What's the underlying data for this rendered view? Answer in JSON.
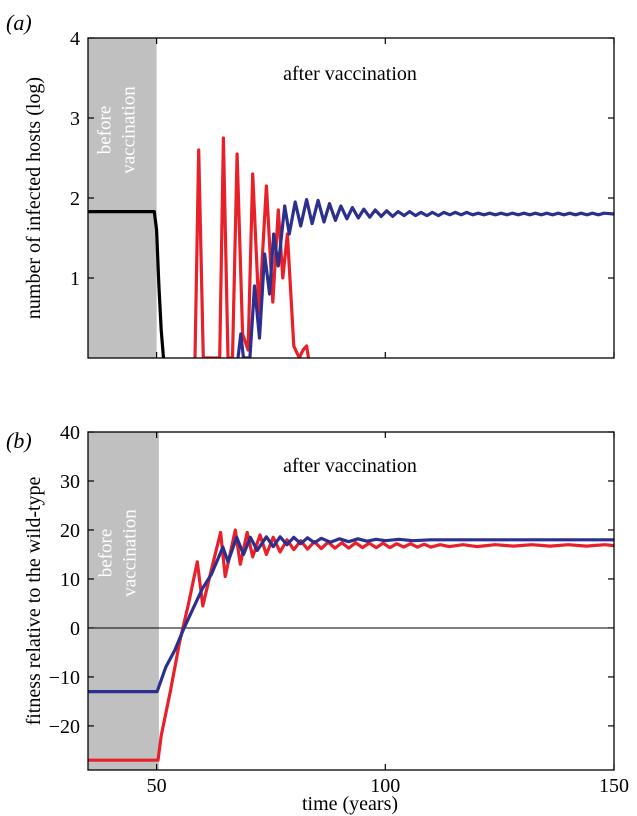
{
  "colors": {
    "black": "#000000",
    "red": "#e8202a",
    "blue": "#2b2f8e",
    "shade": "#c0c0c0"
  },
  "chart_data": [
    {
      "panel_label": "(a)",
      "type": "line",
      "title": "",
      "xlabel": "",
      "ylabel": "number of infected hosts (log)",
      "xlim": [
        35,
        150
      ],
      "ylim": [
        0,
        4
      ],
      "yticks": [
        1,
        2,
        3,
        4
      ],
      "xticks": [
        50,
        100,
        150
      ],
      "show_xtick_labels": false,
      "grid": false,
      "shaded_region": {
        "x": [
          35,
          50
        ],
        "label_line1": "before",
        "label_line2": "vaccination"
      },
      "annotation": "after vaccination",
      "series": [
        {
          "color": "black",
          "points": [
            [
              35,
              1.83
            ],
            [
              49.5,
              1.83
            ],
            [
              50.0,
              1.6
            ],
            [
              50.5,
              0.9
            ],
            [
              51.0,
              0.35
            ],
            [
              51.5,
              0
            ]
          ]
        },
        {
          "color": "red",
          "points": [
            [
              58.4,
              0
            ],
            [
              59.2,
              2.6
            ],
            [
              60.2,
              0
            ],
            [
              61.5,
              0
            ],
            [
              63.8,
              0
            ],
            [
              64.6,
              2.75
            ],
            [
              65.6,
              0
            ],
            [
              66.6,
              0
            ],
            [
              67.6,
              2.55
            ],
            [
              68.8,
              0.3
            ],
            [
              70.0,
              0.1
            ],
            [
              71.0,
              2.3
            ],
            [
              72.4,
              0.55
            ],
            [
              74.0,
              2.15
            ],
            [
              75.4,
              0.7
            ],
            [
              76.6,
              1.85
            ],
            [
              77.6,
              1.0
            ],
            [
              78.6,
              1.55
            ],
            [
              80.0,
              0.15
            ],
            [
              81.2,
              0
            ],
            [
              82.0,
              0.1
            ],
            [
              82.8,
              0.15
            ],
            [
              83.2,
              0
            ]
          ]
        },
        {
          "color": "blue",
          "points": [
            [
              67.8,
              0
            ],
            [
              68.4,
              0.3
            ],
            [
              69.0,
              0
            ],
            [
              70.4,
              0
            ],
            [
              71.4,
              0.9
            ],
            [
              72.5,
              0.25
            ],
            [
              73.6,
              1.3
            ],
            [
              74.7,
              0.8
            ],
            [
              75.6,
              1.55
            ],
            [
              76.6,
              1.15
            ],
            [
              78.0,
              1.9
            ],
            [
              79.0,
              1.55
            ],
            [
              80.3,
              1.95
            ],
            [
              81.5,
              1.65
            ],
            [
              82.8,
              1.98
            ],
            [
              84.0,
              1.68
            ],
            [
              85.3,
              1.97
            ],
            [
              86.6,
              1.7
            ],
            [
              87.8,
              1.93
            ],
            [
              89.1,
              1.72
            ],
            [
              90.3,
              1.9
            ],
            [
              91.6,
              1.74
            ],
            [
              92.8,
              1.88
            ],
            [
              94.1,
              1.75
            ],
            [
              95.3,
              1.86
            ],
            [
              96.6,
              1.76
            ],
            [
              97.8,
              1.85
            ],
            [
              99.1,
              1.77
            ],
            [
              100.3,
              1.84
            ],
            [
              101.6,
              1.77
            ],
            [
              102.8,
              1.83
            ],
            [
              104.1,
              1.78
            ],
            [
              105.3,
              1.83
            ],
            [
              106.6,
              1.78
            ],
            [
              107.8,
              1.82
            ],
            [
              109.1,
              1.78
            ],
            [
              110.3,
              1.82
            ],
            [
              111.6,
              1.78
            ],
            [
              112.8,
              1.82
            ],
            [
              114.1,
              1.79
            ],
            [
              115.3,
              1.82
            ],
            [
              116.6,
              1.79
            ],
            [
              117.8,
              1.82
            ],
            [
              119.1,
              1.79
            ],
            [
              120.3,
              1.81
            ],
            [
              121.6,
              1.79
            ],
            [
              122.8,
              1.81
            ],
            [
              124.1,
              1.79
            ],
            [
              125.3,
              1.81
            ],
            [
              126.6,
              1.79
            ],
            [
              127.8,
              1.81
            ],
            [
              129.1,
              1.79
            ],
            [
              130.3,
              1.81
            ],
            [
              131.6,
              1.79
            ],
            [
              132.8,
              1.81
            ],
            [
              134.1,
              1.79
            ],
            [
              135.3,
              1.81
            ],
            [
              136.6,
              1.79
            ],
            [
              137.8,
              1.81
            ],
            [
              139.1,
              1.79
            ],
            [
              140.3,
              1.81
            ],
            [
              141.6,
              1.79
            ],
            [
              142.8,
              1.81
            ],
            [
              144.1,
              1.79
            ],
            [
              145.3,
              1.81
            ],
            [
              146.6,
              1.79
            ],
            [
              147.8,
              1.81
            ],
            [
              150.0,
              1.8
            ]
          ]
        }
      ]
    },
    {
      "panel_label": "(b)",
      "type": "line",
      "title": "",
      "xlabel": "time (years)",
      "ylabel": "fitness relative to the wild-type",
      "xlim": [
        35,
        150
      ],
      "ylim": [
        -29,
        40
      ],
      "yticks": [
        -20,
        -10,
        0,
        10,
        20,
        30,
        40
      ],
      "xticks": [
        50,
        100,
        150
      ],
      "show_xtick_labels": true,
      "grid": false,
      "zero_line": 0,
      "shaded_region": {
        "x": [
          35,
          50.5
        ],
        "label_line1": "before",
        "label_line2": "vaccination"
      },
      "annotation": "after vaccination",
      "series": [
        {
          "color": "red",
          "points": [
            [
              35,
              -27
            ],
            [
              50.3,
              -27
            ],
            [
              51.0,
              -22
            ],
            [
              53.0,
              -13
            ],
            [
              55.0,
              -3
            ],
            [
              57.0,
              5
            ],
            [
              58.9,
              13.5
            ],
            [
              60.1,
              4.5
            ],
            [
              62.0,
              12
            ],
            [
              64.0,
              19.5
            ],
            [
              65.0,
              10.5
            ],
            [
              67.2,
              20
            ],
            [
              68.3,
              13
            ],
            [
              69.8,
              19.5
            ],
            [
              71.0,
              14.5
            ],
            [
              72.6,
              19
            ],
            [
              74.0,
              15
            ],
            [
              75.5,
              18.5
            ],
            [
              77.0,
              15.5
            ],
            [
              78.5,
              18
            ],
            [
              80.0,
              16
            ],
            [
              81.5,
              17.8
            ],
            [
              83.0,
              16.1
            ],
            [
              84.5,
              17.6
            ],
            [
              86.0,
              16.2
            ],
            [
              87.5,
              17.5
            ],
            [
              89.0,
              16.3
            ],
            [
              90.5,
              17.4
            ],
            [
              92.0,
              16.3
            ],
            [
              93.5,
              17.4
            ],
            [
              95.0,
              16.4
            ],
            [
              96.5,
              17.3
            ],
            [
              98.0,
              16.4
            ],
            [
              99.5,
              17.3
            ],
            [
              101.0,
              16.4
            ],
            [
              102.5,
              17.2
            ],
            [
              104.0,
              16.5
            ],
            [
              105.5,
              17.2
            ],
            [
              107.0,
              16.5
            ],
            [
              108.5,
              17.1
            ],
            [
              110.0,
              16.5
            ],
            [
              112.0,
              17.0
            ],
            [
              114.0,
              16.6
            ],
            [
              117.0,
              17.0
            ],
            [
              120.0,
              16.6
            ],
            [
              124.0,
              17.0
            ],
            [
              128.0,
              16.7
            ],
            [
              132.0,
              17.0
            ],
            [
              136.0,
              16.7
            ],
            [
              140.0,
              17.0
            ],
            [
              144.0,
              16.7
            ],
            [
              148.0,
              17.0
            ],
            [
              150.0,
              16.8
            ]
          ]
        },
        {
          "color": "blue",
          "points": [
            [
              35,
              -13
            ],
            [
              50.1,
              -13
            ],
            [
              52.0,
              -8
            ],
            [
              54.0,
              -4.5
            ],
            [
              56.0,
              0
            ],
            [
              58.0,
              4
            ],
            [
              60.0,
              8
            ],
            [
              62.0,
              11
            ],
            [
              64.5,
              16.5
            ],
            [
              65.6,
              13.5
            ],
            [
              67.5,
              18.5
            ],
            [
              69.0,
              15
            ],
            [
              70.5,
              18.5
            ],
            [
              72.0,
              15.8
            ],
            [
              74.0,
              18.6
            ],
            [
              75.5,
              16.6
            ],
            [
              77.0,
              18.6
            ],
            [
              78.5,
              17.0
            ],
            [
              80.0,
              18.5
            ],
            [
              81.5,
              17.2
            ],
            [
              83.0,
              18.4
            ],
            [
              84.5,
              17.4
            ],
            [
              86.0,
              18.3
            ],
            [
              88.0,
              17.5
            ],
            [
              90.0,
              18.2
            ],
            [
              92.0,
              17.6
            ],
            [
              94.0,
              18.2
            ],
            [
              96.0,
              17.7
            ],
            [
              98.0,
              18.1
            ],
            [
              100.0,
              17.8
            ],
            [
              103.0,
              18.1
            ],
            [
              106.0,
              17.8
            ],
            [
              110.0,
              18.0
            ],
            [
              120.0,
              18.0
            ],
            [
              135.0,
              18.0
            ],
            [
              150.0,
              18.0
            ]
          ]
        }
      ]
    }
  ]
}
